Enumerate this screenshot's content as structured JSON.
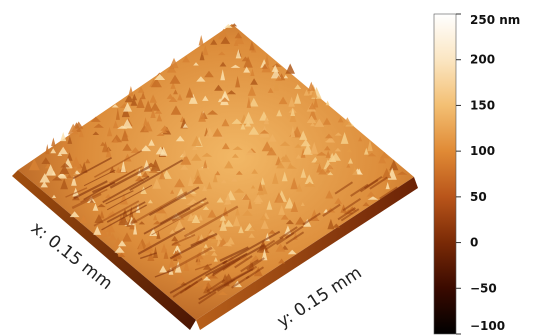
{
  "chart_data": {
    "type": "heatmap",
    "subtype": "3d-afm-surface",
    "x_axis": {
      "label": "x: 0.15 mm",
      "length": 0.15,
      "unit": "mm"
    },
    "y_axis": {
      "label": "y: 0.15 mm",
      "length": 0.15,
      "unit": "mm"
    },
    "colorbar": {
      "unit": "nm",
      "range": [
        -100,
        250
      ],
      "ticks": [
        {
          "value": 250,
          "label": "250 nm"
        },
        {
          "value": 200,
          "label": "200"
        },
        {
          "value": 150,
          "label": "150"
        },
        {
          "value": 100,
          "label": "100"
        },
        {
          "value": 50,
          "label": "50"
        },
        {
          "value": 0,
          "label": "0"
        },
        {
          "value": -50,
          "label": "−50"
        },
        {
          "value": -100,
          "label": "−100"
        }
      ],
      "colormap": [
        "#000000",
        "#3a0a00",
        "#7a2a06",
        "#b9551a",
        "#e08a35",
        "#f3bf73",
        "#fbe6c2",
        "#ffffff"
      ]
    },
    "surface": {
      "base_color": "#c9782a",
      "shadow_color": "#5a1a04",
      "highlight_color": "#f8d79a"
    }
  }
}
